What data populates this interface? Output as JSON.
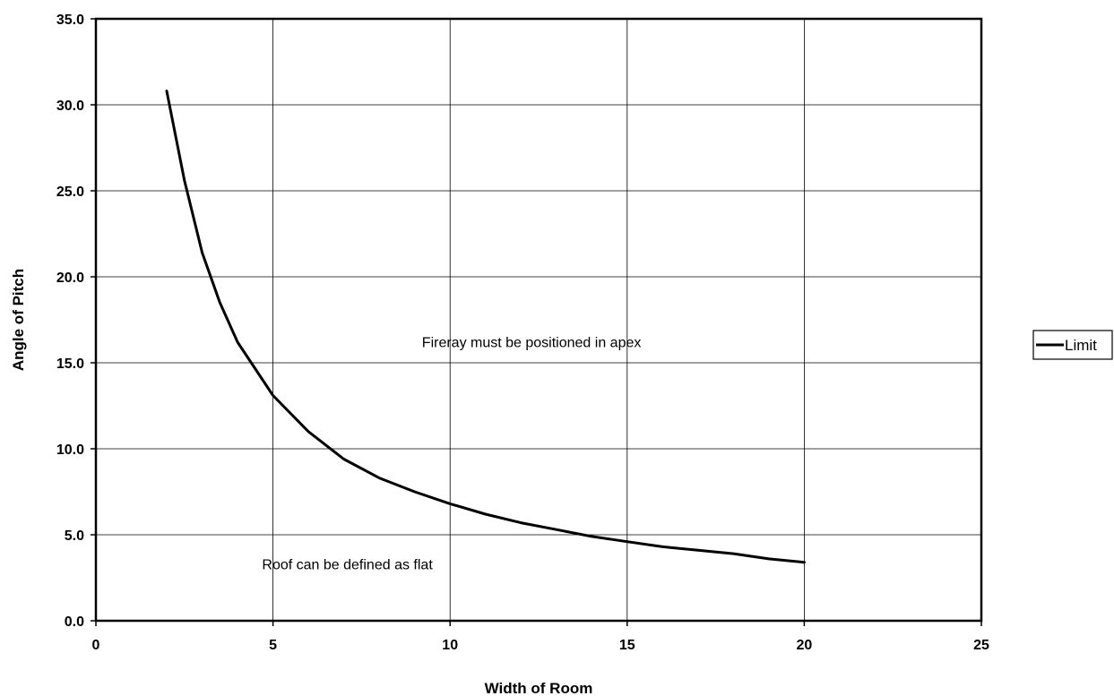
{
  "chart_data": {
    "type": "line",
    "xlabel": "Width of Room",
    "ylabel": "Angle of Pitch",
    "xlim": [
      0,
      25
    ],
    "ylim": [
      0,
      35
    ],
    "x_ticks": [
      "0",
      "5",
      "10",
      "15",
      "20",
      "25"
    ],
    "y_ticks": [
      "0.0",
      "5.0",
      "10.0",
      "15.0",
      "20.0",
      "25.0",
      "30.0",
      "35.0"
    ],
    "grid": true,
    "legend_position": "right",
    "series": [
      {
        "name": "Limit",
        "color": "#000000",
        "x": [
          2,
          2.5,
          3,
          3.5,
          4,
          5,
          6,
          7,
          8,
          9,
          10,
          11,
          12,
          13,
          14,
          15,
          16,
          17,
          18,
          19,
          20
        ],
        "y": [
          30.8,
          25.6,
          21.4,
          18.5,
          16.2,
          13.1,
          11.0,
          9.4,
          8.3,
          7.5,
          6.8,
          6.2,
          5.7,
          5.3,
          4.9,
          4.6,
          4.3,
          4.1,
          3.9,
          3.6,
          3.4
        ]
      }
    ],
    "annotations": [
      {
        "text": "Fireray must be positioned in apex",
        "x": 12.3,
        "y": 15.9
      },
      {
        "text": "Roof can be defined as flat",
        "x": 7.1,
        "y": 3.0
      }
    ]
  }
}
